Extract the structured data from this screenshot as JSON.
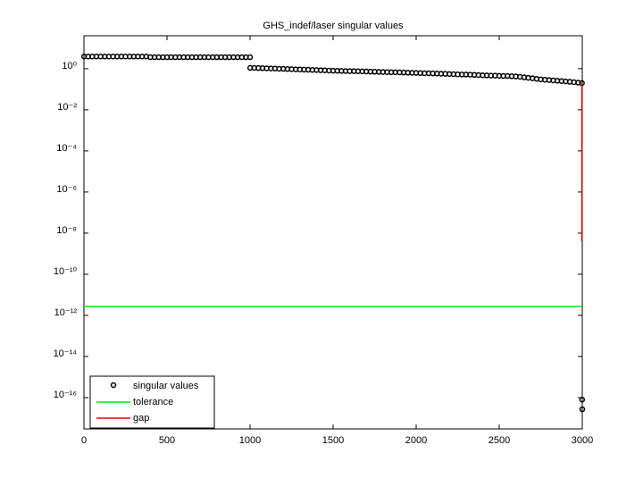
{
  "chart_data": {
    "type": "scatter",
    "title": "GHS_indef/laser singular values",
    "xlim": [
      0,
      3000
    ],
    "xticks": [
      0,
      500,
      1000,
      1500,
      2000,
      2500,
      3000
    ],
    "ylim": [
      3e-18,
      40
    ],
    "ylog": true,
    "yticks": [
      {
        "value": 1,
        "label": "10⁰"
      },
      {
        "value": 0.01,
        "label": "10⁻²"
      },
      {
        "value": 0.0001,
        "label": "10⁻⁴"
      },
      {
        "value": 1e-06,
        "label": "10⁻⁶"
      },
      {
        "value": 1e-08,
        "label": "10⁻⁸"
      },
      {
        "value": 1e-10,
        "label": "10⁻¹⁰"
      },
      {
        "value": 1e-12,
        "label": "10⁻¹²"
      },
      {
        "value": 1e-14,
        "label": "10⁻¹⁴"
      },
      {
        "value": 1e-16,
        "label": "10⁻¹⁶"
      }
    ],
    "legend": "lower left",
    "series": [
      {
        "name": "singular values",
        "color": "#000000",
        "mode": "markers",
        "x": [
          1,
          25,
          50,
          75,
          100,
          125,
          150,
          175,
          200,
          225,
          250,
          275,
          300,
          325,
          350,
          375,
          400,
          425,
          450,
          475,
          500,
          525,
          550,
          575,
          600,
          625,
          650,
          675,
          700,
          725,
          750,
          775,
          800,
          825,
          850,
          875,
          900,
          925,
          950,
          975,
          1000,
          1001,
          1025,
          1050,
          1075,
          1100,
          1125,
          1150,
          1175,
          1200,
          1225,
          1250,
          1275,
          1300,
          1325,
          1350,
          1375,
          1400,
          1425,
          1450,
          1475,
          1500,
          1525,
          1550,
          1575,
          1600,
          1625,
          1650,
          1675,
          1700,
          1725,
          1750,
          1775,
          1800,
          1825,
          1850,
          1875,
          1900,
          1925,
          1950,
          1975,
          2000,
          2025,
          2050,
          2075,
          2100,
          2125,
          2150,
          2175,
          2200,
          2225,
          2250,
          2275,
          2300,
          2325,
          2350,
          2375,
          2400,
          2425,
          2450,
          2475,
          2500,
          2525,
          2550,
          2575,
          2600,
          2625,
          2650,
          2675,
          2700,
          2725,
          2750,
          2775,
          2800,
          2825,
          2850,
          2875,
          2900,
          2925,
          2950,
          2975,
          2998,
          2999,
          3000
        ],
        "values": [
          3.9,
          3.9,
          3.9,
          3.9,
          3.9,
          3.9,
          3.9,
          3.9,
          3.9,
          3.9,
          3.9,
          3.9,
          3.9,
          3.9,
          3.9,
          3.9,
          3.6,
          3.6,
          3.6,
          3.6,
          3.6,
          3.6,
          3.6,
          3.6,
          3.6,
          3.6,
          3.6,
          3.6,
          3.6,
          3.6,
          3.6,
          3.6,
          3.6,
          3.6,
          3.6,
          3.6,
          3.6,
          3.6,
          3.6,
          3.6,
          3.6,
          1.1,
          1.09,
          1.07,
          1.06,
          1.04,
          1.03,
          1.01,
          0.99,
          0.98,
          0.96,
          0.95,
          0.93,
          0.92,
          0.9,
          0.89,
          0.87,
          0.86,
          0.84,
          0.83,
          0.81,
          0.8,
          0.79,
          0.78,
          0.77,
          0.76,
          0.76,
          0.75,
          0.74,
          0.73,
          0.72,
          0.71,
          0.7,
          0.69,
          0.68,
          0.67,
          0.67,
          0.66,
          0.65,
          0.64,
          0.63,
          0.62,
          0.61,
          0.6,
          0.6,
          0.59,
          0.58,
          0.57,
          0.56,
          0.55,
          0.54,
          0.53,
          0.52,
          0.52,
          0.51,
          0.5,
          0.49,
          0.48,
          0.47,
          0.46,
          0.46,
          0.45,
          0.44,
          0.44,
          0.43,
          0.42,
          0.4,
          0.38,
          0.36,
          0.34,
          0.32,
          0.3,
          0.29,
          0.28,
          0.27,
          0.26,
          0.25,
          0.24,
          0.23,
          0.22,
          0.21,
          0.2,
          8e-17,
          2.7e-17
        ]
      },
      {
        "name": "tolerance",
        "color": "#00ee00",
        "mode": "lines",
        "x": [
          0,
          3000
        ],
        "values": [
          2.7e-12,
          2.7e-12
        ]
      },
      {
        "name": "gap",
        "color": "#dd0000",
        "mode": "lines",
        "x": [
          2998,
          2998
        ],
        "values": [
          0.2,
          4e-09
        ]
      }
    ]
  }
}
